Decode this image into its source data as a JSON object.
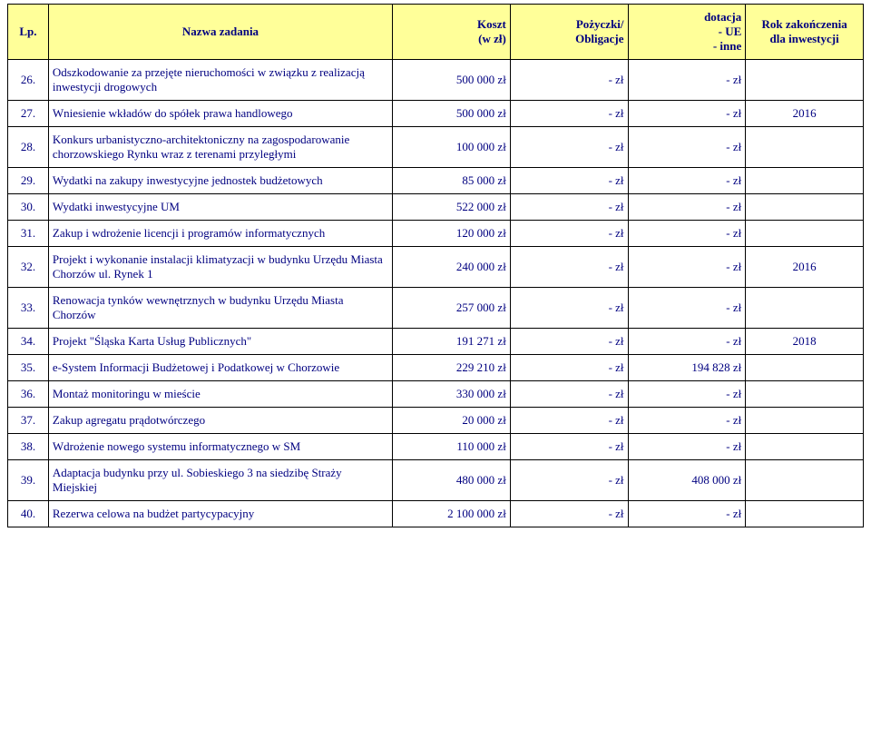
{
  "headers": {
    "lp": "Lp.",
    "name": "Nazwa zadania",
    "cost": "Koszt\n(w zł)",
    "loan": "Pożyczki/\nObligacje",
    "grant": "dotacja\n- UE\n- inne",
    "year": "Rok zakończenia\ndla inwestycji"
  },
  "rows": [
    {
      "lp": "26.",
      "name": "Odszkodowanie za przejęte nieruchomości w związku z realizacją inwestycji drogowych",
      "cost": "500 000 zł",
      "loan": "- zł",
      "grant": "- zł",
      "year": ""
    },
    {
      "lp": "27.",
      "name": "Wniesienie wkładów do spółek prawa handlowego",
      "cost": "500 000 zł",
      "loan": "- zł",
      "grant": "- zł",
      "year": "2016"
    },
    {
      "lp": "28.",
      "name": "Konkurs urbanistyczno-architektoniczny na zagospodarowanie chorzowskiego Rynku wraz z terenami przyległymi",
      "cost": "100 000 zł",
      "loan": "- zł",
      "grant": "- zł",
      "year": ""
    },
    {
      "lp": "29.",
      "name": "Wydatki na zakupy inwestycyjne jednostek budżetowych",
      "cost": "85 000 zł",
      "loan": "- zł",
      "grant": "- zł",
      "year": ""
    },
    {
      "lp": "30.",
      "name": "Wydatki inwestycyjne UM",
      "cost": "522 000 zł",
      "loan": "- zł",
      "grant": "- zł",
      "year": ""
    },
    {
      "lp": "31.",
      "name": "Zakup i wdrożenie licencji i programów informatycznych",
      "cost": "120 000 zł",
      "loan": "- zł",
      "grant": "- zł",
      "year": ""
    },
    {
      "lp": "32.",
      "name": "Projekt i wykonanie instalacji klimatyzacji w budynku Urzędu Miasta Chorzów ul. Rynek 1",
      "cost": "240 000 zł",
      "loan": "- zł",
      "grant": "- zł",
      "year": "2016"
    },
    {
      "lp": "33.",
      "name": "Renowacja tynków wewnętrznych w budynku Urzędu Miasta Chorzów",
      "cost": "257 000 zł",
      "loan": "- zł",
      "grant": "- zł",
      "year": ""
    },
    {
      "lp": "34.",
      "name": "Projekt \"Śląska Karta Usług Publicznych\"",
      "cost": "191 271 zł",
      "loan": "- zł",
      "grant": "- zł",
      "year": "2018"
    },
    {
      "lp": "35.",
      "name": "e-System Informacji Budżetowej i Podatkowej w Chorzowie",
      "cost": "229 210 zł",
      "loan": "- zł",
      "grant": "194 828 zł",
      "year": ""
    },
    {
      "lp": "36.",
      "name": "Montaż monitoringu w mieście",
      "cost": "330 000 zł",
      "loan": "- zł",
      "grant": "- zł",
      "year": ""
    },
    {
      "lp": "37.",
      "name": "Zakup agregatu prądotwórczego",
      "cost": "20 000 zł",
      "loan": "- zł",
      "grant": "- zł",
      "year": ""
    },
    {
      "lp": "38.",
      "name": "Wdrożenie nowego systemu informatycznego w SM",
      "cost": "110 000 zł",
      "loan": "- zł",
      "grant": "- zł",
      "year": ""
    },
    {
      "lp": "39.",
      "name": "Adaptacja budynku przy ul. Sobieskiego 3 na siedzibę Straży Miejskiej",
      "cost": "480 000 zł",
      "loan": "- zł",
      "grant": "408 000 zł",
      "year": ""
    },
    {
      "lp": "40.",
      "name": "Rezerwa celowa na budżet partycypacyjny",
      "cost": "2 100 000 zł",
      "loan": "- zł",
      "grant": "- zł",
      "year": ""
    }
  ]
}
